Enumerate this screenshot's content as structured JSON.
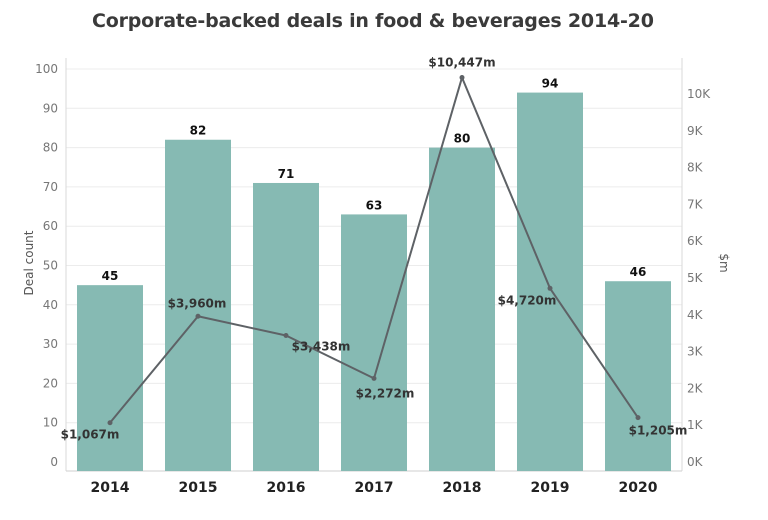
{
  "chart_data": {
    "type": "bar",
    "title": "Corporate-backed deals in food & beverages 2014-20",
    "categories": [
      "2014",
      "2015",
      "2016",
      "2017",
      "2018",
      "2019",
      "2020"
    ],
    "series": [
      {
        "type": "bar",
        "axis": "left",
        "values": [
          45,
          82,
          71,
          63,
          80,
          94,
          46
        ],
        "data_labels": [
          "45",
          "82",
          "71",
          "63",
          "80",
          "94",
          "46"
        ],
        "color": "#86BAB3"
      },
      {
        "type": "line",
        "axis": "right",
        "values": [
          1067,
          3960,
          3438,
          2272,
          10447,
          4720,
          1205
        ],
        "data_labels": [
          "$1,067m",
          "$3,960m",
          "$3,438m",
          "$2,272m",
          "$10,447m",
          "$4,720m",
          "$1,205m"
        ],
        "color": "#5E6266"
      }
    ],
    "ylabel": "Deal count",
    "ylim": [
      0,
      100
    ],
    "yticks": [
      "0",
      "10",
      "20",
      "30",
      "40",
      "50",
      "60",
      "70",
      "80",
      "90",
      "100"
    ],
    "y2label": "$m",
    "y2lim": [
      0,
      10700
    ],
    "y2ticks": [
      "0K",
      "1K",
      "2K",
      "3K",
      "4K",
      "5K",
      "6K",
      "7K",
      "8K",
      "9K",
      "10K"
    ],
    "grid": true
  }
}
